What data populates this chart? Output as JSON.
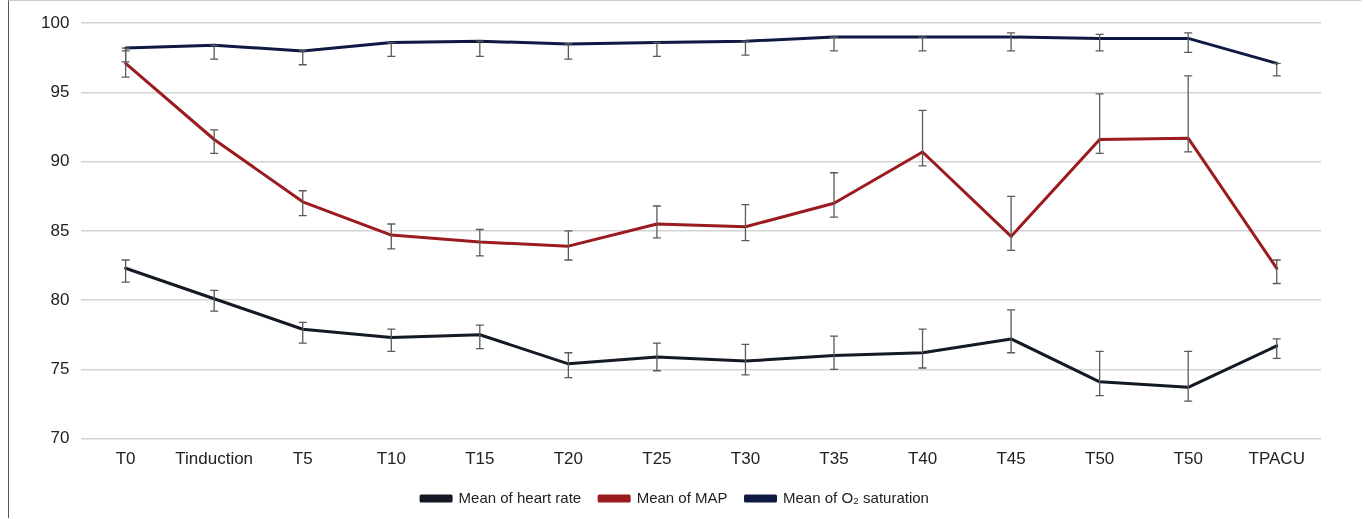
{
  "chart_data": {
    "type": "line",
    "categories": [
      "T0",
      "Tinduction",
      "T5",
      "T10",
      "T15",
      "T20",
      "T25",
      "T30",
      "T35",
      "T40",
      "T45",
      "T50",
      "T50",
      "TPACU"
    ],
    "series": [
      {
        "name": "Mean of heart rate",
        "color": "#141a24",
        "values": [
          82.3,
          80.1,
          77.9,
          77.3,
          77.5,
          75.4,
          75.9,
          75.6,
          76.0,
          76.2,
          77.2,
          74.1,
          73.7,
          76.7
        ],
        "errors": [
          [
            81.3,
            82.9
          ],
          [
            79.2,
            80.7
          ],
          [
            76.9,
            78.4
          ],
          [
            76.3,
            77.9
          ],
          [
            76.5,
            78.2
          ],
          [
            74.4,
            76.2
          ],
          [
            74.9,
            76.9
          ],
          [
            74.6,
            76.8
          ],
          [
            75.0,
            77.4
          ],
          [
            75.1,
            77.9
          ],
          [
            76.2,
            79.3
          ],
          [
            73.1,
            76.3
          ],
          [
            72.7,
            76.3
          ],
          [
            75.8,
            77.2
          ]
        ]
      },
      {
        "name": "Mean of MAP",
        "color": "#9b1b1e",
        "values": [
          97.1,
          91.6,
          87.1,
          84.7,
          84.2,
          83.9,
          85.5,
          85.3,
          87.0,
          90.7,
          84.6,
          91.6,
          91.7,
          82.3
        ],
        "errors": [
          [
            96.1,
            98.0
          ],
          [
            90.6,
            92.3
          ],
          [
            86.1,
            87.9
          ],
          [
            83.7,
            85.5
          ],
          [
            83.2,
            85.1
          ],
          [
            82.9,
            85.0
          ],
          [
            84.5,
            86.8
          ],
          [
            84.3,
            86.9
          ],
          [
            86.0,
            89.2
          ],
          [
            89.7,
            93.7
          ],
          [
            83.6,
            87.5
          ],
          [
            90.6,
            94.9
          ],
          [
            90.7,
            96.2
          ],
          [
            81.2,
            82.9
          ]
        ]
      },
      {
        "name": "Mean of O₂ saturation",
        "color": "#0f1a44",
        "values": [
          98.2,
          98.4,
          98.0,
          98.6,
          98.7,
          98.5,
          98.6,
          98.7,
          99.0,
          99.0,
          99.0,
          98.9,
          98.9,
          97.1
        ],
        "errors": [
          [
            97.2,
            98.2
          ],
          [
            97.4,
            98.4
          ],
          [
            97.0,
            98.0
          ],
          [
            97.6,
            98.6
          ],
          [
            97.6,
            98.7
          ],
          [
            97.4,
            98.5
          ],
          [
            97.6,
            98.6
          ],
          [
            97.7,
            98.7
          ],
          [
            98.0,
            99.0
          ],
          [
            98.0,
            99.0
          ],
          [
            98.0,
            99.3
          ],
          [
            98.0,
            99.2
          ],
          [
            97.9,
            99.3
          ],
          [
            96.2,
            97.1
          ]
        ]
      }
    ],
    "ylim": [
      70,
      100
    ],
    "yticks": [
      70,
      75,
      80,
      85,
      90,
      95,
      100
    ],
    "grid": "y",
    "legend": "bottom",
    "marker": "none",
    "line_style": "solid"
  }
}
